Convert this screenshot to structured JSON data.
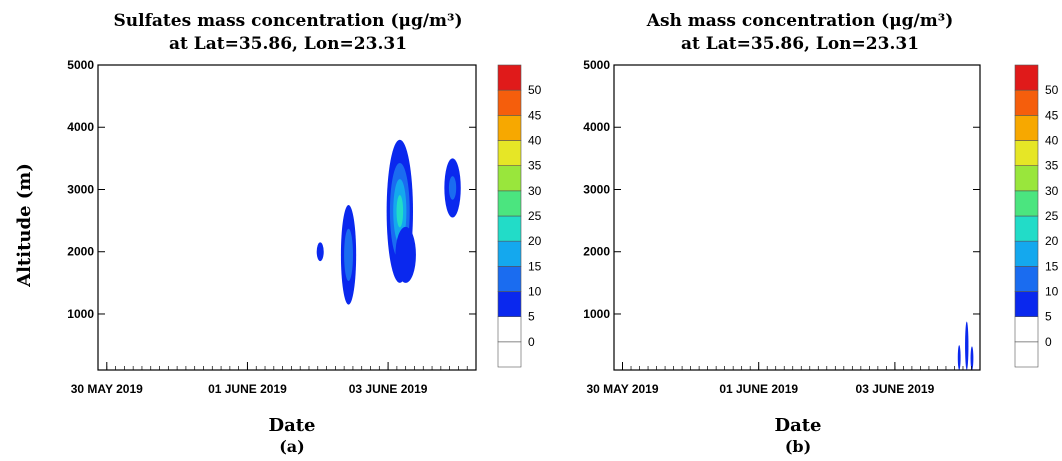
{
  "chart_data": [
    {
      "type": "heatmap",
      "title_line1": "Sulfates mass concentration (μg/m³)",
      "title_line2": "at Lat=35.86, Lon=23.31",
      "xlabel": "Date",
      "ylabel": "Altitude (m)",
      "panel_label": "(a)",
      "ylim": [
        100,
        5000
      ],
      "yticks": [
        1000,
        2000,
        3000,
        4000,
        5000
      ],
      "xlim": [
        "2019-05-29T21:00",
        "2019-06-04T06:00"
      ],
      "xticks": [
        {
          "value": "2019-05-30",
          "label": "30 MAY 2019"
        },
        {
          "value": "2019-06-01",
          "label": "01 JUNE 2019"
        },
        {
          "value": "2019-06-03",
          "label": "03 JUNE 2019"
        }
      ],
      "colorbar": {
        "levels": [
          0,
          5,
          10,
          15,
          20,
          25,
          30,
          35,
          40,
          45,
          50
        ],
        "colors": [
          "#ffffff",
          "#ffffff",
          "#0a28ee",
          "#1a6cf0",
          "#14a8ee",
          "#22dcc8",
          "#4be57f",
          "#99e63c",
          "#e6e626",
          "#f7a800",
          "#f55e0c",
          "#e01a1a"
        ]
      },
      "plumes": [
        {
          "t_center": "2019-06-02T00:50",
          "t_halfwidth_h": 1.2,
          "alt_min": 1850,
          "alt_max": 2150,
          "peak": 8
        },
        {
          "t_center": "2019-06-02T10:30",
          "t_halfwidth_h": 2.6,
          "alt_min": 1150,
          "alt_max": 2750,
          "peak": 14
        },
        {
          "t_center": "2019-06-03T04:00",
          "t_halfwidth_h": 4.5,
          "alt_min": 1500,
          "alt_max": 3800,
          "peak": 22
        },
        {
          "t_center": "2019-06-03T06:00",
          "t_halfwidth_h": 3.5,
          "alt_min": 1500,
          "alt_max": 2400,
          "peak": 10
        },
        {
          "t_center": "2019-06-03T22:00",
          "t_halfwidth_h": 2.8,
          "alt_min": 2550,
          "alt_max": 3500,
          "peak": 11
        }
      ]
    },
    {
      "type": "heatmap",
      "title_line1": "Ash mass concentration (μg/m³)",
      "title_line2": "at Lat=35.86, Lon=23.31",
      "xlabel": "Date",
      "ylabel": "",
      "panel_label": "(b)",
      "ylim": [
        100,
        5000
      ],
      "yticks": [
        1000,
        2000,
        3000,
        4000,
        5000
      ],
      "xlim": [
        "2019-05-29T21:00",
        "2019-06-04T06:00"
      ],
      "xticks": [
        {
          "value": "2019-05-30",
          "label": "30 MAY 2019"
        },
        {
          "value": "2019-06-01",
          "label": "01 JUNE 2019"
        },
        {
          "value": "2019-06-03",
          "label": "03 JUNE 2019"
        }
      ],
      "colorbar": {
        "levels": [
          0,
          5,
          10,
          15,
          20,
          25,
          30,
          35,
          40,
          45,
          50
        ],
        "colors": [
          "#ffffff",
          "#ffffff",
          "#0a28ee",
          "#1a6cf0",
          "#14a8ee",
          "#22dcc8",
          "#4be57f",
          "#99e63c",
          "#e6e626",
          "#f7a800",
          "#f55e0c",
          "#e01a1a"
        ]
      },
      "plumes": [
        {
          "t_center": "2019-06-03T22:40",
          "t_halfwidth_h": 0.5,
          "alt_min": 100,
          "alt_max": 500,
          "peak": 7
        },
        {
          "t_center": "2019-06-04T01:20",
          "t_halfwidth_h": 0.6,
          "alt_min": 100,
          "alt_max": 880,
          "peak": 8
        },
        {
          "t_center": "2019-06-04T03:10",
          "t_halfwidth_h": 0.5,
          "alt_min": 100,
          "alt_max": 480,
          "peak": 7
        }
      ]
    }
  ]
}
